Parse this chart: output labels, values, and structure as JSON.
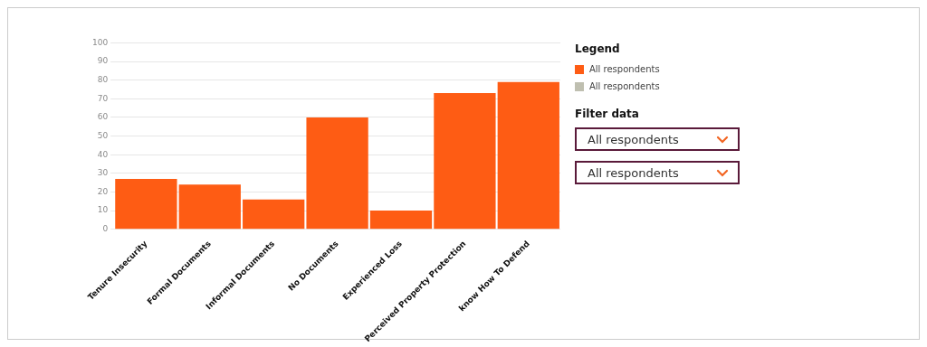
{
  "chart_data": {
    "type": "bar",
    "legend_title": "Legend",
    "legend": "right",
    "categories": [
      "Tenure Insecurity",
      "Formal Documents",
      "Informal Documents",
      "No Documents",
      "Experienced Loss",
      "Perceived Property Protection",
      "know How To Defend"
    ],
    "series": [
      {
        "name": "All respondents",
        "color": "#fe5c14",
        "values": [
          27,
          24,
          16,
          60,
          10,
          73,
          79
        ]
      },
      {
        "name": "All respondents",
        "color": "#bfbfb0",
        "values": [
          null,
          null,
          null,
          null,
          null,
          null,
          null
        ]
      }
    ],
    "ylim": [
      0,
      100
    ],
    "yticks": [
      0,
      10,
      20,
      30,
      40,
      50,
      60,
      70,
      80,
      90,
      100
    ],
    "grid": "y",
    "annotations": [
      "Filter data",
      "All respondents",
      "All respondents"
    ]
  }
}
